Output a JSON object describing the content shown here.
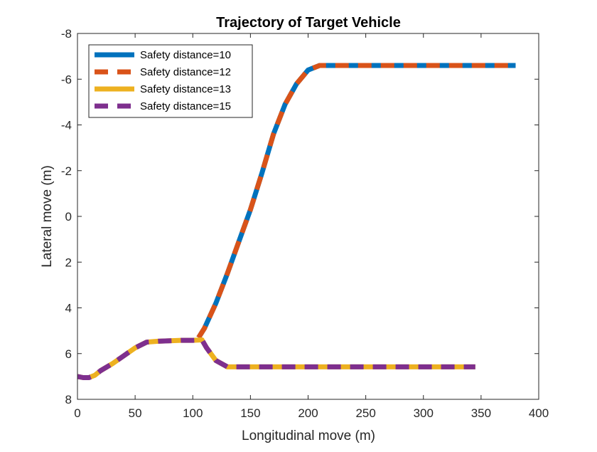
{
  "chart_data": {
    "type": "line",
    "title": "Trajectory of Target Vehicle",
    "xlabel": "Longitudinal move (m)",
    "ylabel": "Lateral move (m)",
    "xlim": [
      0,
      400
    ],
    "ylim": [
      -8,
      8
    ],
    "y_reversed": true,
    "grid": false,
    "legend_position": "top-left",
    "x_ticks": [
      "0",
      "50",
      "100",
      "150",
      "200",
      "250",
      "300",
      "350",
      "400"
    ],
    "y_ticks": [
      "-8",
      "-6",
      "-4",
      "-2",
      "0",
      "2",
      "4",
      "6",
      "8"
    ],
    "series": [
      {
        "name": "Safety distance=10",
        "color": "#0072BD",
        "style": "solid",
        "x": [
          105,
          110,
          120,
          130,
          140,
          150,
          160,
          170,
          180,
          190,
          200,
          210,
          230,
          260,
          300,
          340,
          380
        ],
        "y": [
          5.3,
          4.9,
          3.8,
          2.5,
          1.1,
          -0.3,
          -1.9,
          -3.6,
          -4.9,
          -5.8,
          -6.4,
          -6.6,
          -6.6,
          -6.6,
          -6.6,
          -6.6,
          -6.6
        ]
      },
      {
        "name": "Safety distance=12",
        "color": "#D95319",
        "style": "dashed",
        "x": [
          105,
          110,
          120,
          130,
          140,
          150,
          160,
          170,
          180,
          190,
          200,
          210,
          230,
          260,
          300,
          340,
          380
        ],
        "y": [
          5.3,
          4.9,
          3.8,
          2.5,
          1.1,
          -0.3,
          -1.9,
          -3.6,
          -4.9,
          -5.8,
          -6.4,
          -6.6,
          -6.6,
          -6.6,
          -6.6,
          -6.6,
          -6.6
        ]
      },
      {
        "name": "Safety distance=13",
        "color": "#EDB120",
        "style": "solid",
        "x": [
          0,
          5,
          10,
          15,
          20,
          30,
          40,
          50,
          60,
          65,
          70,
          80,
          90,
          100,
          108,
          112,
          120,
          130,
          140,
          160,
          200,
          250,
          300,
          345
        ],
        "y": [
          7.0,
          7.05,
          7.05,
          6.95,
          6.75,
          6.45,
          6.1,
          5.75,
          5.5,
          5.48,
          5.46,
          5.44,
          5.42,
          5.42,
          5.4,
          5.75,
          6.3,
          6.58,
          6.58,
          6.58,
          6.58,
          6.58,
          6.58,
          6.58
        ]
      },
      {
        "name": "Safety distance=15",
        "color": "#7E2F8E",
        "style": "dashed",
        "x": [
          0,
          5,
          10,
          15,
          20,
          30,
          40,
          50,
          60,
          65,
          70,
          80,
          90,
          100,
          108,
          112,
          120,
          130,
          140,
          160,
          200,
          250,
          300,
          345
        ],
        "y": [
          7.0,
          7.05,
          7.05,
          6.95,
          6.75,
          6.45,
          6.1,
          5.75,
          5.5,
          5.48,
          5.46,
          5.44,
          5.42,
          5.42,
          5.4,
          5.75,
          6.3,
          6.58,
          6.58,
          6.58,
          6.58,
          6.58,
          6.58,
          6.58
        ]
      }
    ]
  }
}
